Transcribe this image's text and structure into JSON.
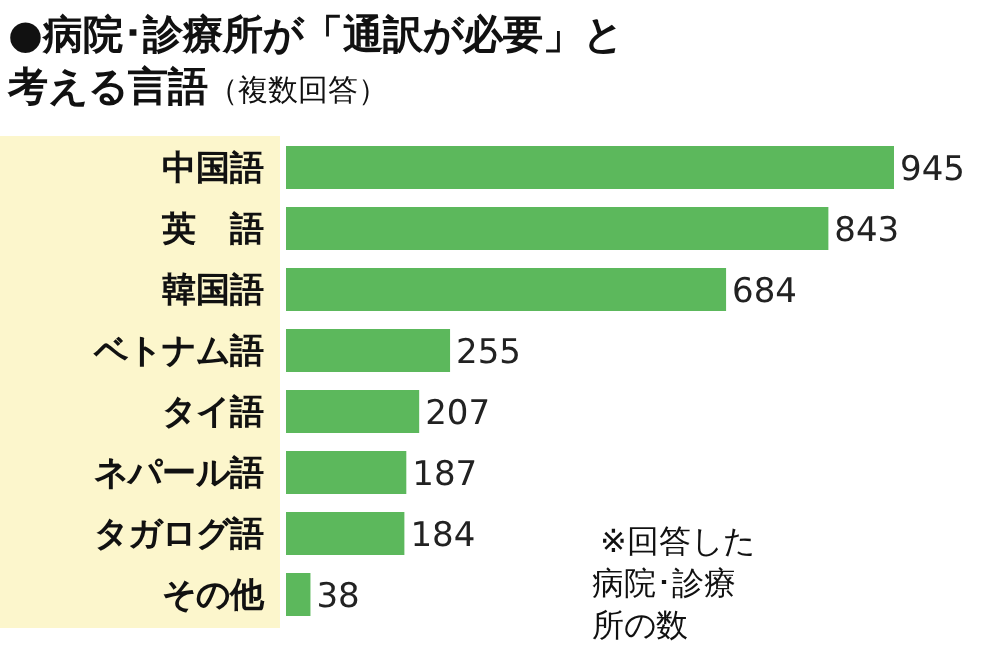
{
  "chart_data": {
    "type": "bar",
    "orientation": "horizontal",
    "title": "●病院･診療所が「通訳が必要」と考える言語",
    "subtitle": "（複数回答）",
    "categories": [
      "中国語",
      "英　語",
      "韓国語",
      "ベトナム語",
      "タイ語",
      "ネパール語",
      "タガログ語",
      "その他"
    ],
    "values": [
      945,
      843,
      684,
      255,
      207,
      187,
      184,
      38
    ],
    "color": "#5cb85c",
    "data_labels": true,
    "annotations": [
      "※回答した病院･診療所の数"
    ]
  }
}
